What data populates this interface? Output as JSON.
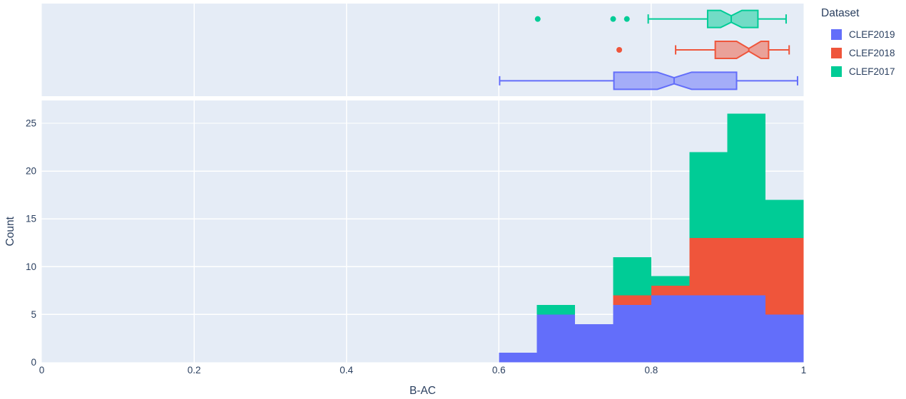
{
  "chart_data": {
    "type": "histogram",
    "subtype": "stacked histogram with marginal notched box plots (plotly style)",
    "title": "",
    "xlabel": "B-AC",
    "ylabel": "Count",
    "xlim": [
      0,
      1
    ],
    "ylim": [
      0,
      27.4
    ],
    "grid": true,
    "plot_bgcolor": "#e5ecf6",
    "grid_color": "#ffffff",
    "text_color": "#2a3f5f",
    "x_tick_labels": [
      "0",
      "0.2",
      "0.4",
      "0.6",
      "0.8",
      "1"
    ],
    "x_tick_values": [
      0,
      0.2,
      0.4,
      0.6,
      0.8,
      1
    ],
    "y_tick_labels": [
      "0",
      "5",
      "10",
      "15",
      "20",
      "25"
    ],
    "y_tick_values": [
      0,
      5,
      10,
      15,
      20,
      25
    ],
    "legend": {
      "title": "Dataset",
      "position": "top-right",
      "entries": [
        {
          "label": "CLEF2019",
          "color": "#636efa"
        },
        {
          "label": "CLEF2018",
          "color": "#ef553b"
        },
        {
          "label": "CLEF2017",
          "color": "#00cc96"
        }
      ]
    },
    "histogram": {
      "stacked": true,
      "bin_edges": [
        0.6,
        0.65,
        0.7,
        0.75,
        0.8,
        0.85,
        0.9,
        0.95,
        1.0
      ],
      "series": [
        {
          "name": "CLEF2019",
          "color": "#636efa",
          "values": [
            1,
            5,
            4,
            6,
            7,
            7,
            7,
            5
          ]
        },
        {
          "name": "CLEF2018",
          "color": "#ef553b",
          "values": [
            0,
            0,
            0,
            1,
            1,
            6,
            6,
            8
          ]
        },
        {
          "name": "CLEF2017",
          "color": "#00cc96",
          "values": [
            0,
            1,
            0,
            4,
            1,
            9,
            13,
            4
          ]
        }
      ]
    },
    "marginal_boxes": [
      {
        "name": "CLEF2017",
        "color": "#00cc96",
        "row": 0,
        "whisker_low": 0.796,
        "q1": 0.874,
        "median": 0.905,
        "q3": 0.94,
        "whisker_high": 0.977,
        "notch_low": 0.891,
        "notch_high": 0.919,
        "notch_depth": 0.62,
        "outliers": [
          0.651,
          0.75,
          0.768
        ]
      },
      {
        "name": "CLEF2018",
        "color": "#ef553b",
        "row": 1,
        "whisker_low": 0.832,
        "q1": 0.884,
        "median": 0.928,
        "q3": 0.954,
        "whisker_high": 0.981,
        "notch_low": 0.912,
        "notch_high": 0.944,
        "notch_depth": 0.84,
        "outliers": [
          0.758
        ]
      },
      {
        "name": "CLEF2019",
        "color": "#636efa",
        "row": 2,
        "whisker_low": 0.601,
        "q1": 0.751,
        "median": 0.83,
        "q3": 0.912,
        "whisker_high": 0.992,
        "notch_low": 0.808,
        "notch_high": 0.853,
        "notch_depth": 0.65,
        "outliers": []
      }
    ]
  }
}
